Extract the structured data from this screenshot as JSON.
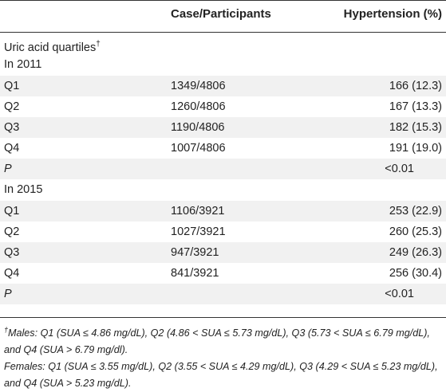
{
  "header": {
    "col1": "",
    "col2": "Case/Participants",
    "col3": "Hypertension (%)"
  },
  "section_title": "Uric acid quartiles",
  "section_title_sup": "†",
  "groups": [
    {
      "label": "In 2011",
      "rows": [
        {
          "q": "Q1",
          "case": "1349/4806",
          "ht": "166 (12.3)"
        },
        {
          "q": "Q2",
          "case": "1260/4806",
          "ht": "167 (13.3)"
        },
        {
          "q": "Q3",
          "case": "1190/4806",
          "ht": "182 (15.3)"
        },
        {
          "q": "Q4",
          "case": "1007/4806",
          "ht": "191 (19.0)"
        }
      ],
      "p_label": "P",
      "p_value": "<0.01"
    },
    {
      "label": "In 2015",
      "rows": [
        {
          "q": "Q1",
          "case": "1106/3921",
          "ht": "253 (22.9)"
        },
        {
          "q": "Q2",
          "case": "1027/3921",
          "ht": "260 (25.3)"
        },
        {
          "q": "Q3",
          "case": "947/3921",
          "ht": "249 (26.3)"
        },
        {
          "q": "Q4",
          "case": "841/3921",
          "ht": "256 (30.4)"
        }
      ],
      "p_label": "P",
      "p_value": "<0.01"
    }
  ],
  "footnotes": {
    "marker": "†",
    "males": "Males: Q1 (SUA ≤ 4.86 mg/dL), Q2 (4.86 < SUA ≤ 5.73 mg/dL), Q3 (5.73 < SUA ≤ 6.79 mg/dL), and Q4 (SUA > 6.79 mg/dl).",
    "females": "Females: Q1 (SUA ≤ 3.55 mg/dL), Q2 (3.55 < SUA ≤ 4.29 mg/dL), Q3 (4.29 < SUA ≤ 5.23 mg/dL), and Q4 (SUA > 5.23 mg/dL)."
  }
}
